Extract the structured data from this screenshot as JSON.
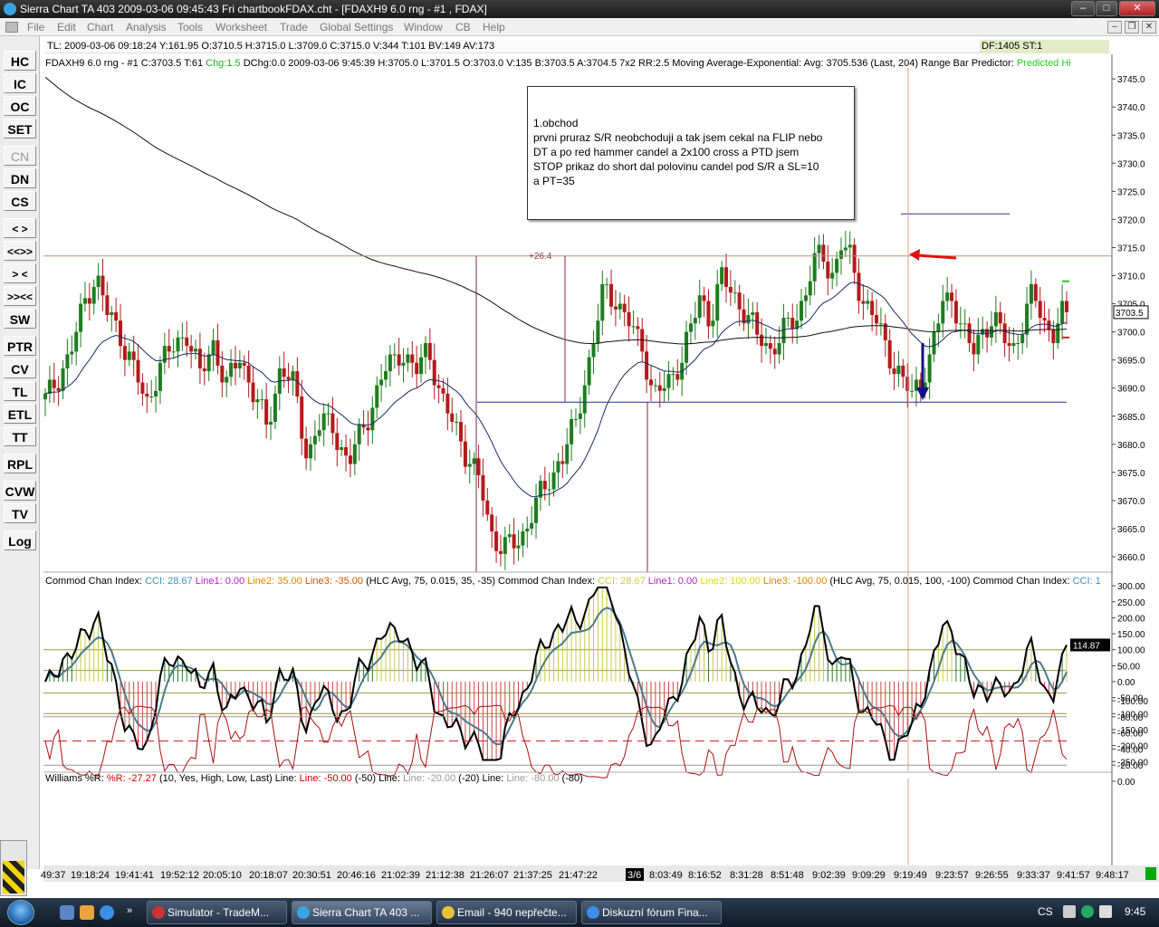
{
  "window": {
    "title": "Sierra Chart TA 403   2009-03-06  09:45:43  Fri    chartbookFDAX.cht - [FDAXH9  6.0 rng - #1 , FDAX]"
  },
  "menu": [
    "File",
    "Edit",
    "Chart",
    "Analysis",
    "Tools",
    "Worksheet",
    "Trade",
    "Global Settings",
    "Window",
    "CB",
    "Help"
  ],
  "sidebar": [
    "HC",
    "IC",
    "OC",
    "SET",
    "CN",
    "DN",
    "CS",
    "< >",
    "<<>>",
    "> <",
    ">><<",
    "SW",
    "PTR",
    "CV",
    "TL",
    "ETL",
    "TT",
    "RPL",
    "CVW",
    "TV",
    "Log"
  ],
  "status_line": "TL: 2009-03-06  09:18:24  Y:161.95  O:3710.5  H:3715.0  L:3709.0  C:3715.0  V:344  T:101  BV:149  AV:173",
  "df_box": "DF:1405  ST:1",
  "price_header": [
    {
      "t": "FDAXH9  6.0 rng - #1  C:3703.5  T:61  ",
      "c": "#000000"
    },
    {
      "t": "Chg:1.5",
      "c": "#22aa22"
    },
    {
      "t": "  DChg:0.0  2009-03-06  9:45:39  H:3705.0  L:3701.5  O:3703.0  V:135  B:3703.5  A:3704.5  7x2  RR:2.5  Moving Average-Exponential:  Avg: 3705.536    (Last, 204)   Range Bar Predictor:  ",
      "c": "#000000"
    },
    {
      "t": "Predicted Hi",
      "c": "#22cc22"
    }
  ],
  "annotation": {
    "lines": [
      "1.obchod",
      "prvni pruraz S/R neobchoduji a tak jsem cekal na FLIP nebo",
      "DT a po red hammer candel a 2x100 cross a PTD jsem",
      "STOP prikaz do short dal polovinu candel pod S/R a SL=10",
      "a PT=35"
    ]
  },
  "move_label": "+26.4",
  "price_axis": {
    "ticks": [
      "3745.0",
      "3740.0",
      "3735.0",
      "3730.0",
      "3725.0",
      "3720.0",
      "3715.0",
      "3710.0",
      "3705.0",
      "3700.0",
      "3695.0",
      "3690.0",
      "3685.0",
      "3680.0",
      "3675.0",
      "3670.0",
      "3665.0",
      "3660.0"
    ],
    "last_price": "3703.5"
  },
  "cci": {
    "header": [
      {
        "t": "Commod Chan Index:  ",
        "c": "#000000"
      },
      {
        "t": "CCI: 28.67  ",
        "c": "#3a8fbf"
      },
      {
        "t": "Line1: 0.00  ",
        "c": "#bb22bb"
      },
      {
        "t": "Line2: 35.00  ",
        "c": "#dd8800"
      },
      {
        "t": "Line3: -35.00  ",
        "c": "#cc5500"
      },
      {
        "t": "(HLC Avg, 75, 0.015, 35, -35)   Commod Chan Index:  ",
        "c": "#000000"
      },
      {
        "t": "CCI: 28.67  ",
        "c": "#cccc44"
      },
      {
        "t": "Line1: 0.00  ",
        "c": "#bb22bb"
      },
      {
        "t": "Line2: 100.00  ",
        "c": "#dddd00"
      },
      {
        "t": "Line3: -100.00  ",
        "c": "#dd8800"
      },
      {
        "t": "(HLC Avg, 75, 0.015, 100, -100)   Commod Chan Index:  ",
        "c": "#000000"
      },
      {
        "t": "CCI: 1",
        "c": "#3a8fbf"
      }
    ],
    "ticks": [
      "300.00",
      "250.00",
      "200.00",
      "150.00",
      "100.00",
      "50.00",
      "0.00",
      "-50.00",
      "-100.00",
      "-150.00",
      "-200.00",
      "-250.00"
    ],
    "last_value": "114.87"
  },
  "williams": {
    "header": [
      {
        "t": "Williams %R:  ",
        "c": "#000000"
      },
      {
        "t": "%R: -27.27  ",
        "c": "#cc0000"
      },
      {
        "t": "(10, Yes, High, Low, Last)   Line:  ",
        "c": "#000000"
      },
      {
        "t": "Line: -50.00  ",
        "c": "#cc0000"
      },
      {
        "t": "(-50)   Line:  ",
        "c": "#000000"
      },
      {
        "t": "Line: -20.00  ",
        "c": "#999999"
      },
      {
        "t": "(-20)   Line:  ",
        "c": "#000000"
      },
      {
        "t": "Line: -80.00  ",
        "c": "#999999"
      },
      {
        "t": "(-80)",
        "c": "#000000"
      }
    ],
    "ticks": [
      "0.00",
      "-20.00",
      "-40.00",
      "-60.00",
      "-80.00",
      "-100.00"
    ]
  },
  "time_axis": [
    "49:37",
    "19:18:24",
    "19:41:41",
    "19:52:12",
    "20:05:10",
    "20:18:07",
    "20:30:51",
    "20:46:16",
    "21:02:39",
    "21:12:38",
    "21:26:07",
    "21:37:25",
    "21:47:22",
    "3/6",
    "8:03:49",
    "8:16:52",
    "8:31:28",
    "8:51:48",
    "9:02:39",
    "9:09:29",
    "9:19:49",
    "9:23:57",
    "9:26:55",
    "9:33:37",
    "9:41:57",
    "9:48:17"
  ],
  "taskbar": {
    "buttons": [
      "Simulator - TradeM...",
      "Sierra Chart TA 403 ...",
      "Email - 940 nepřečte...",
      "Diskuzní fórum Fina..."
    ],
    "lang": "CS",
    "clock": "9:45"
  }
}
